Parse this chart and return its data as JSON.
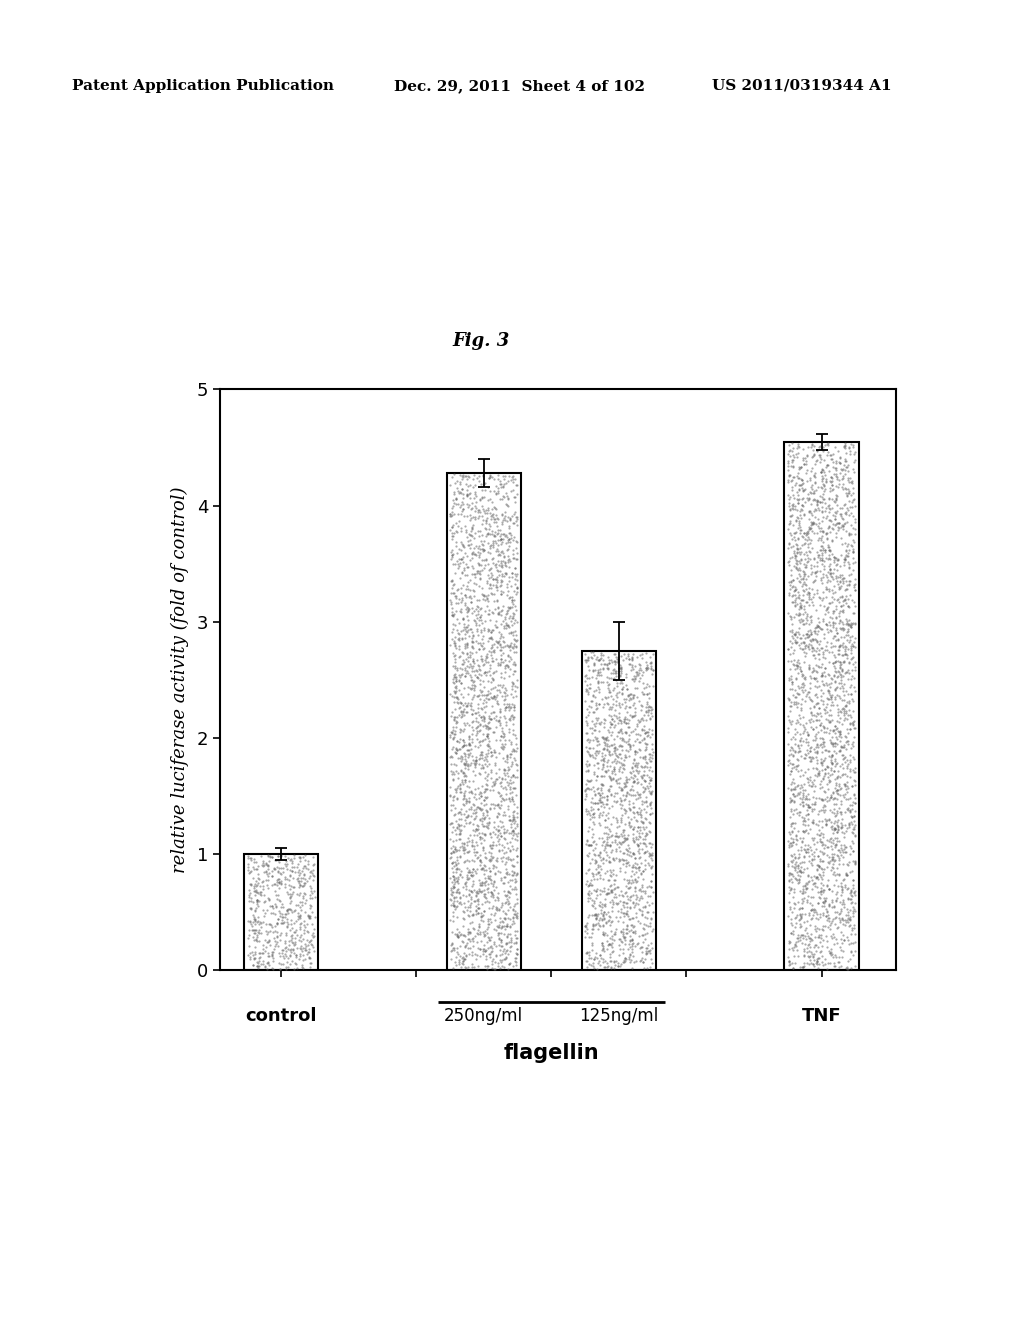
{
  "header_left": "Patent Application Publication",
  "header_mid": "Dec. 29, 2011  Sheet 4 of 102",
  "header_right": "US 2011/0319344 A1",
  "fig_label": "Fig. 3",
  "values": [
    1.0,
    4.28,
    2.75,
    4.55
  ],
  "errors": [
    0.05,
    0.12,
    0.25,
    0.07
  ],
  "ylabel": "relative luciferase activity (fold of control)",
  "ylim": [
    0,
    5
  ],
  "yticks": [
    0,
    1,
    2,
    3,
    4,
    5
  ],
  "bar_edgecolor": "#000000",
  "bar_width": 0.55,
  "flagellin_label": "flagellin",
  "background_color": "#ffffff",
  "bar_positions": [
    1.0,
    2.5,
    3.5,
    5.0
  ],
  "control_label": "control",
  "tnf_label": "TNF",
  "dot_color": "#666666",
  "dot_size": 2.5,
  "dot_alpha": 0.55
}
